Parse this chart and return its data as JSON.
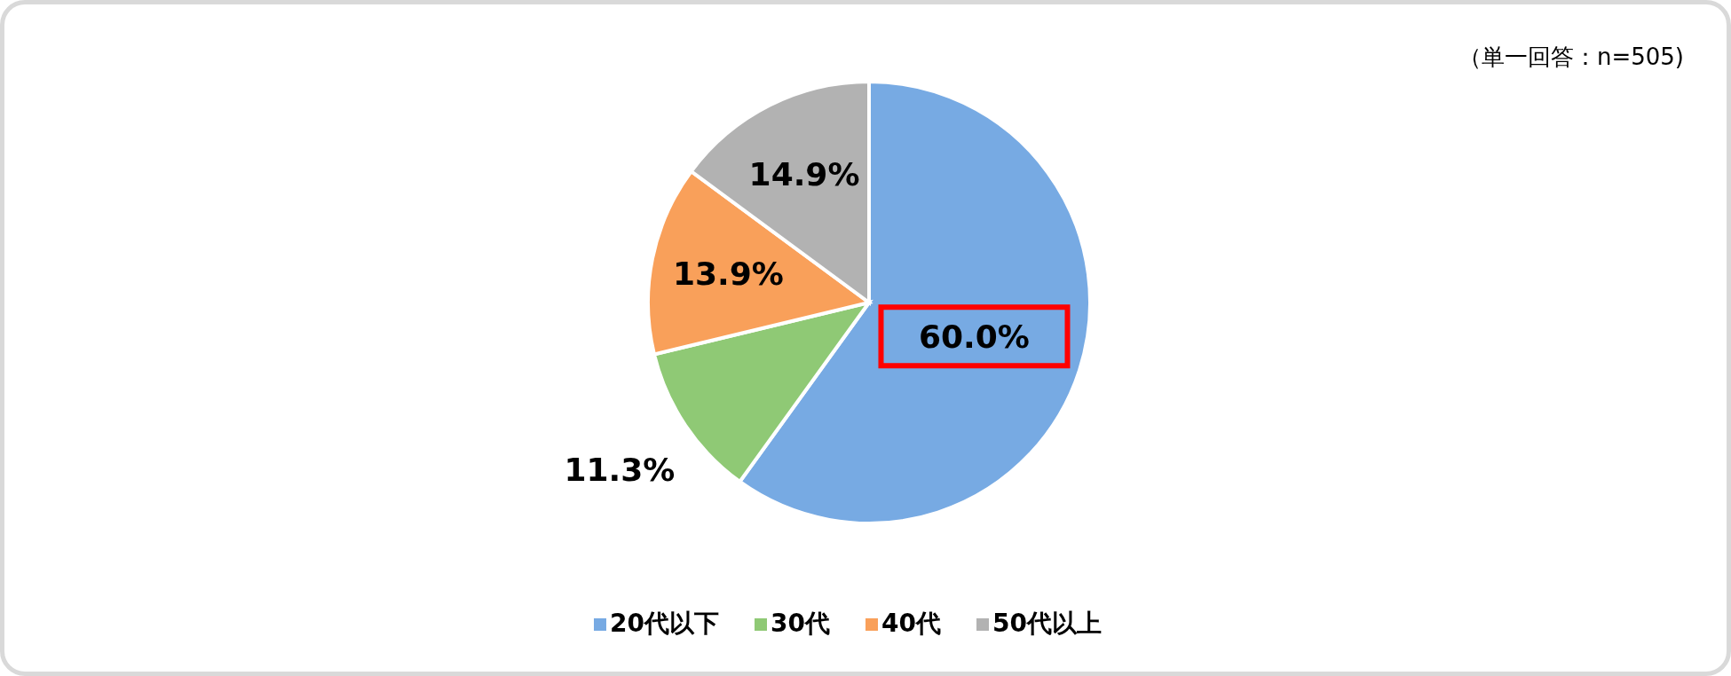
{
  "chart_data": {
    "type": "pie",
    "categories": [
      "20代以下",
      "30代",
      "40代",
      "50代以上"
    ],
    "values": [
      60.0,
      11.3,
      13.9,
      14.9
    ],
    "colors": [
      "#77aae3",
      "#8fc975",
      "#f9a05a",
      "#b2b2b2"
    ],
    "value_labels": [
      "60.0%",
      "11.3%",
      "13.9%",
      "14.9%"
    ],
    "legend": "bottom",
    "annotations": [
      "（単一回答：n=505)"
    ]
  }
}
